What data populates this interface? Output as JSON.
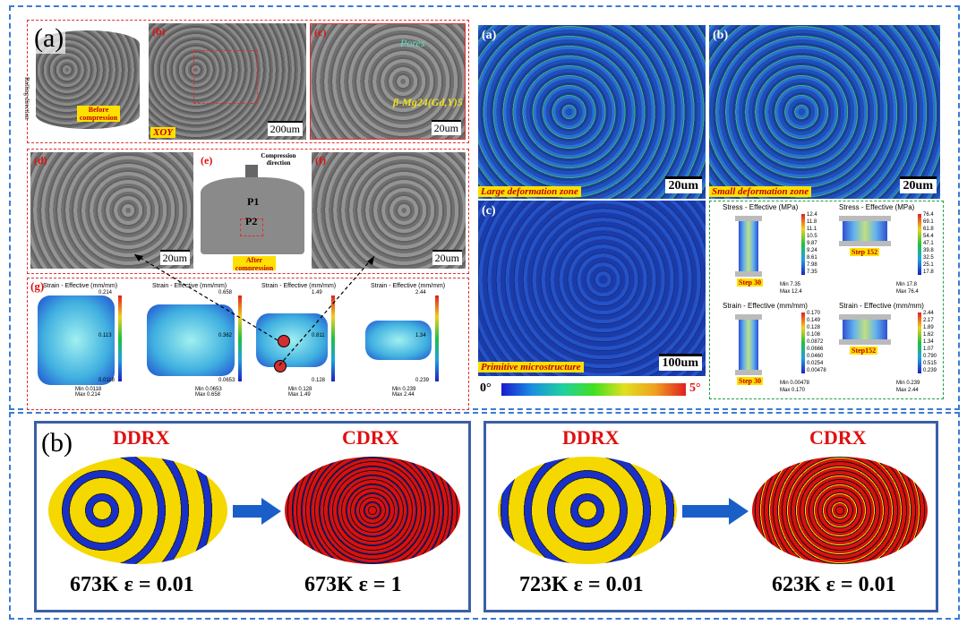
{
  "top": {
    "panel_label_a": "(a)",
    "panel_label_b": "(b)",
    "sub_a": {
      "pores_label": "Pores",
      "phase_label": "β-Mg24(Gd,Y)5",
      "rolling_label": "Rolling direction",
      "before_tag": "Before compression",
      "xoy_tag": "XOY",
      "after_tag": "After compression",
      "compression_label": "Compression direction",
      "p1": "P1",
      "p2": "P2",
      "scale_200": "200um",
      "scale_20": "20um",
      "letter_b": "(b)",
      "letter_c": "(c)",
      "letter_d": "(d)",
      "letter_e": "(e)",
      "letter_f": "(f)",
      "letter_g": "(g)",
      "strain_title": "Strain - Effective (mm/mm)",
      "sims": [
        {
          "max_top": "0.214",
          "mid": "0.113",
          "bot": "0.0118",
          "min": "0.0118",
          "max": "0.214"
        },
        {
          "max_top": "0.658",
          "mid": "0.362",
          "bot": "0.0653",
          "min": "0.0653",
          "max": "0.658"
        },
        {
          "max_top": "1.49",
          "mid": "0.811",
          "bot": "0.128",
          "min": "0.128",
          "max": "1.49"
        },
        {
          "max_top": "2.44",
          "mid": "1.34",
          "bot": "0.239",
          "min": "0.239",
          "max": "2.44"
        }
      ],
      "min_label": "Min",
      "max_label": "Max"
    },
    "ebsd": {
      "label_a": "(a)",
      "label_b": "(b)",
      "label_c": "(c)",
      "large_zone": "Large deformation zone",
      "small_zone": "Small deformation zone",
      "primitive": "Primitive microstructure",
      "scale_20": "20um",
      "scale_100": "100um",
      "cb_min": "0°",
      "cb_max": "5°"
    },
    "sim_right": {
      "stress_title": "Stress - Effective (MPa)",
      "strain_title": "Strain - Effective (mm/mm)",
      "stress1": [
        "12.4",
        "11.8",
        "11.1",
        "10.5",
        "9.87",
        "9.24",
        "8.61",
        "7.98",
        "7.35"
      ],
      "stress1_min": "7.35",
      "stress1_max": "12.4",
      "stress2": [
        "76.4",
        "69.1",
        "61.8",
        "54.4",
        "47.1",
        "39.8",
        "32.5",
        "25.1",
        "17.8"
      ],
      "stress2_min": "17.8",
      "stress2_max": "76.4",
      "strain1": [
        "0.170",
        "0.149",
        "0.128",
        "0.108",
        "0.0872",
        "0.0666",
        "0.0460",
        "0.0254",
        "0.00478"
      ],
      "strain1_min": "0.00478",
      "strain1_max": "0.170",
      "strain2": [
        "2.44",
        "2.17",
        "1.89",
        "1.62",
        "1.34",
        "1.07",
        "0.790",
        "0.515",
        "0.239"
      ],
      "strain2_min": "0.239",
      "strain2_max": "2.44",
      "step30": "Step 30",
      "step152": "Step 152",
      "step30b": "Step 30",
      "step152b": "Step152",
      "min_label": "Min",
      "max_label": "Max"
    }
  },
  "bottom": {
    "label": "(b)",
    "groups": [
      {
        "left_title": "DDRX",
        "right_title": "CDRX",
        "left_cond": "673K  ε = 0.01",
        "right_cond": "673K  ε = 1"
      },
      {
        "left_title": "DDRX",
        "right_title": "CDRX",
        "left_cond": "723K  ε = 0.01",
        "right_cond": "623K  ε = 0.01"
      }
    ]
  },
  "colors": {
    "frame_blue": "#3a7bd5",
    "red_border": "#e03030",
    "green_border": "#20a040",
    "box_blue": "#3a5fa8",
    "yellow_grain": "#f5d800",
    "blue_grain": "#1830c8",
    "red_grain": "#d81010"
  }
}
